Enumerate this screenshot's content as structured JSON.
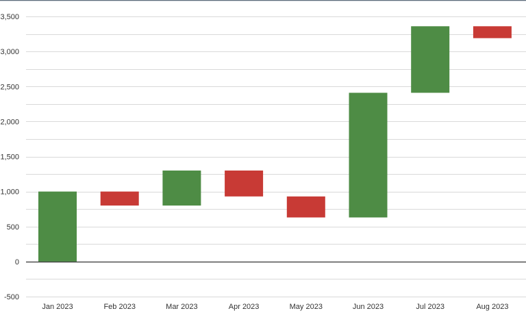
{
  "chart_data": {
    "type": "bar",
    "subtype": "waterfall",
    "categories": [
      "Jan 2023",
      "Feb 2023",
      "Mar 2023",
      "Apr 2023",
      "May 2023",
      "Jun 2023",
      "Jul 2023",
      "Aug 2023"
    ],
    "deltas": [
      1000,
      -200,
      500,
      -370,
      -300,
      1780,
      950,
      -170
    ],
    "starts": [
      0,
      1000,
      800,
      1300,
      930,
      630,
      2410,
      3360
    ],
    "ends": [
      1000,
      800,
      1300,
      930,
      630,
      2410,
      3360,
      3190
    ],
    "title": "",
    "xlabel": "",
    "ylabel": "",
    "ylim": [
      -500,
      3500
    ],
    "yticks": [
      -500,
      0,
      500,
      1000,
      1500,
      2000,
      2500,
      3000,
      3500
    ],
    "ytick_labels": [
      "-500",
      "0",
      "500",
      "1,000",
      "1,500",
      "2,000",
      "2,500",
      "3,000",
      "3,500"
    ],
    "grid": true,
    "minor_grid": true,
    "colors": {
      "increase": "#4e8c45",
      "decrease": "#c83a35",
      "grid": "#d9d9d9",
      "zero_line": "#333333",
      "top_border": "#5b6b7b"
    }
  }
}
